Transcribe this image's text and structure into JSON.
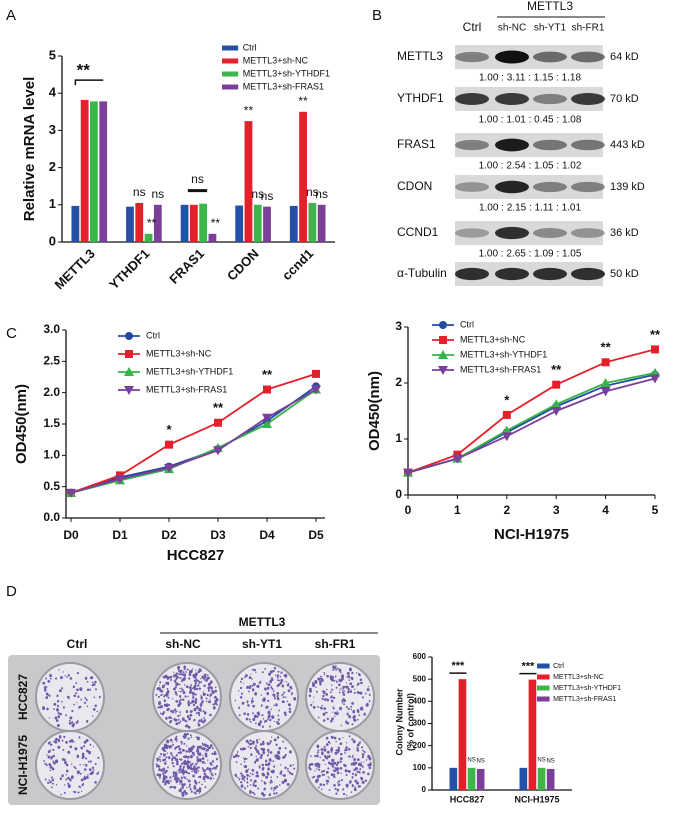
{
  "panel_labels": [
    "A",
    "B",
    "C",
    "D"
  ],
  "western_blot": {
    "group": "METTL3",
    "lanes": [
      "Ctrl",
      "sh-NC",
      "sh-YT1",
      "sh-FR1"
    ],
    "rows": [
      {
        "protein": "METTL3",
        "size": "64 kD",
        "ratios": "1.00 : 3.11 : 1.15 : 1.18"
      },
      {
        "protein": "YTHDF1",
        "size": "70 kD",
        "ratios": "1.00 : 1.01 : 0.45 : 1.08"
      },
      {
        "protein": "FRAS1",
        "size": "443 kD",
        "ratios": "1.00 : 2.54 : 1.05 : 1.02"
      },
      {
        "protein": "CDON",
        "size": "139 kD",
        "ratios": "1.00 : 2.15 : 1.11 : 1.01"
      },
      {
        "protein": "CCND1",
        "size": "36 kD",
        "ratios": "1.00 : 2.65 : 1.09 : 1.05"
      },
      {
        "protein": "α-Tubulin",
        "size": "50 kD"
      }
    ]
  },
  "colony_assay": {
    "group": "METTL3",
    "columns": [
      "Ctrl",
      "sh-NC",
      "sh-YT1",
      "sh-FR1"
    ],
    "rows": [
      "HCC827",
      "NCI-H1975"
    ]
  },
  "chart_data": [
    {
      "type": "bar",
      "ylabel": "Relative mRNA level",
      "categories": [
        "METTL3",
        "YTHDF1",
        "FRAS1",
        "CDON",
        "ccnd1"
      ],
      "ylim": [
        0,
        5
      ],
      "yticks": [
        0,
        1,
        2,
        3,
        4,
        5
      ],
      "series": [
        {
          "name": "Ctrl",
          "color": "#2450a6",
          "values": [
            0.97,
            0.95,
            1.0,
            0.98,
            0.97
          ]
        },
        {
          "name": "METTL3+sh-NC",
          "color": "#e3212a",
          "values": [
            3.82,
            1.05,
            1.0,
            3.25,
            3.5
          ]
        },
        {
          "name": "METTL3+sh-YTHDF1",
          "color": "#3cb54a",
          "values": [
            3.78,
            0.22,
            1.03,
            1.0,
            1.05
          ]
        },
        {
          "name": "METTL3+sh-FRAS1",
          "color": "#7c3f98",
          "values": [
            3.78,
            1.0,
            0.22,
            0.95,
            1.0
          ]
        }
      ],
      "annotations": [
        "**",
        "ns",
        "**",
        "ns",
        "ns",
        "**",
        "**",
        "ns",
        "ns",
        "**",
        "ns",
        "ns"
      ]
    },
    {
      "type": "line",
      "xlabel": "HCC827",
      "ylabel": "OD450(nm)",
      "categories": [
        "D0",
        "D1",
        "D2",
        "D3",
        "D4",
        "D5"
      ],
      "ylim": [
        0,
        3
      ],
      "yticks": [
        {
          "value": 0,
          "label": "0.0"
        },
        0.5,
        {
          "value": 1,
          "label": "1.0"
        },
        1.5,
        {
          "value": 2,
          "label": "2.0"
        },
        2.5,
        {
          "value": 3,
          "label": "3.0"
        }
      ],
      "series": [
        {
          "name": "Ctrl",
          "color": "#2449a0",
          "marker": "circle",
          "values": [
            0.4,
            0.65,
            0.82,
            1.1,
            1.55,
            2.1
          ]
        },
        {
          "name": "METTL3+sh-NC",
          "color": "#e5202a",
          "marker": "square",
          "values": [
            0.4,
            0.68,
            1.17,
            1.52,
            2.05,
            2.3
          ]
        },
        {
          "name": "METTL3+sh-YTHDF1",
          "color": "#36b44a",
          "marker": "triangle-up",
          "values": [
            0.4,
            0.6,
            0.78,
            1.12,
            1.5,
            2.05
          ]
        },
        {
          "name": "METTL3+sh-FRAS1",
          "color": "#7a3f9a",
          "marker": "triangle-down",
          "values": [
            0.4,
            0.62,
            0.8,
            1.08,
            1.6,
            2.05
          ]
        }
      ],
      "annotations": [
        "*",
        "**",
        "**"
      ]
    },
    {
      "type": "line",
      "xlabel": "NCI-H1975",
      "ylabel": "OD450(nm)",
      "x": [
        0,
        1,
        2,
        3,
        4,
        5
      ],
      "xlim": [
        0,
        5
      ],
      "xticks": [
        0,
        1,
        2,
        3,
        4,
        5
      ],
      "ylim": [
        0,
        3
      ],
      "yticks": [
        0,
        1,
        2,
        3
      ],
      "series": [
        {
          "name": "Ctrl",
          "color": "#2449a0",
          "marker": "circle",
          "values": [
            0.4,
            0.65,
            1.12,
            1.58,
            1.95,
            2.15
          ]
        },
        {
          "name": "METTL3+sh-NC",
          "color": "#e5202a",
          "marker": "square",
          "values": [
            0.4,
            0.72,
            1.43,
            1.97,
            2.37,
            2.6
          ]
        },
        {
          "name": "METTL3+sh-YTHDF1",
          "color": "#36b44a",
          "marker": "triangle-up",
          "values": [
            0.4,
            0.65,
            1.15,
            1.62,
            2.0,
            2.18
          ]
        },
        {
          "name": "METTL3+sh-FRAS1",
          "color": "#7a3f9a",
          "marker": "triangle-down",
          "values": [
            0.4,
            0.65,
            1.05,
            1.5,
            1.85,
            2.08
          ]
        }
      ],
      "annotations": [
        "*",
        "**",
        "**",
        "**"
      ]
    },
    {
      "type": "bar",
      "ylabel": [
        "Colony Number",
        "(% of control)"
      ],
      "categories": [
        "HCC827",
        "NCI-H1975"
      ],
      "ylim": [
        0,
        600
      ],
      "yticks": [
        0,
        100,
        200,
        300,
        400,
        500,
        600
      ],
      "series": [
        {
          "name": "Ctrl",
          "color": "#2350a8",
          "values": [
            100,
            100
          ]
        },
        {
          "name": "METTL3+sh-NC",
          "color": "#e2202a",
          "values": [
            500,
            498
          ]
        },
        {
          "name": "METTL3+sh-YTHDF1",
          "color": "#3db54a",
          "values": [
            100,
            100
          ]
        },
        {
          "name": "METTL3+sh-FRAS1",
          "color": "#7b3f98",
          "values": [
            95,
            95
          ]
        }
      ],
      "annotations": [
        "***",
        "NS",
        "NS",
        "***",
        "NS",
        "NS"
      ]
    }
  ]
}
